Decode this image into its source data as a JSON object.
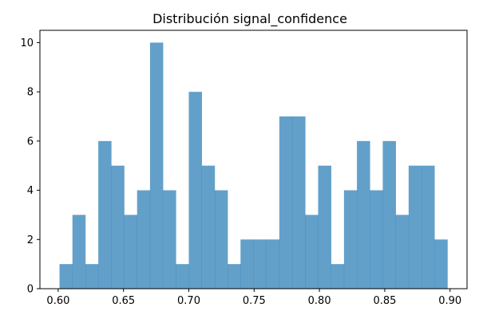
{
  "chart_data": {
    "type": "bar",
    "title": "Distribución signal_confidence",
    "xlabel": "",
    "ylabel": "",
    "bin_start": 0.601,
    "bin_width": 0.0099,
    "values": [
      1,
      3,
      1,
      6,
      5,
      3,
      4,
      10,
      4,
      1,
      8,
      5,
      4,
      1,
      2,
      2,
      2,
      7,
      7,
      3,
      5,
      1,
      4,
      6,
      4,
      6,
      3,
      5,
      5,
      2
    ],
    "xlim": [
      0.586,
      0.913
    ],
    "ylim": [
      0,
      10.5
    ],
    "xticks": [
      0.6,
      0.65,
      0.7,
      0.75,
      0.8,
      0.85,
      0.9
    ],
    "xtick_labels": [
      "0.60",
      "0.65",
      "0.70",
      "0.75",
      "0.80",
      "0.85",
      "0.90"
    ],
    "yticks": [
      0,
      2,
      4,
      6,
      8,
      10
    ],
    "ytick_labels": [
      "0",
      "2",
      "4",
      "6",
      "8",
      "10"
    ],
    "bar_color": "#1f77b4",
    "bar_alpha": 0.7,
    "grid": false
  }
}
